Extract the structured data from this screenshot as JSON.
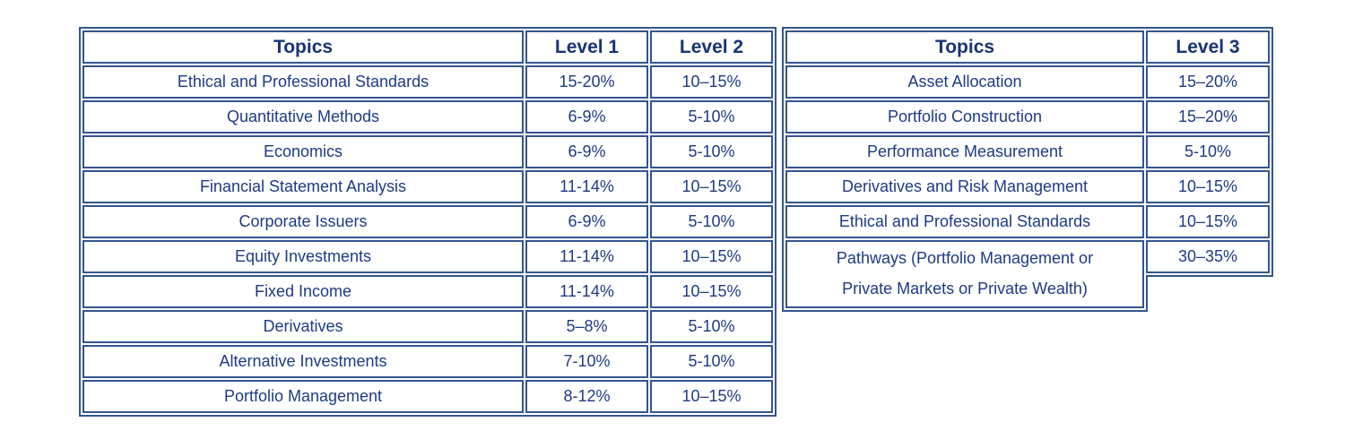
{
  "colors": {
    "text": "#1e3a85",
    "header_text": "#1a3375",
    "border": "#34558f",
    "background": "#ffffff"
  },
  "left_table": {
    "headers": [
      "Topics",
      "Level 1",
      "Level 2"
    ],
    "rows": [
      [
        "Ethical and Professional Standards",
        "15-20%",
        "10–15%"
      ],
      [
        "Quantitative Methods",
        "6-9%",
        "5-10%"
      ],
      [
        "Economics",
        "6-9%",
        "5-10%"
      ],
      [
        "Financial Statement Analysis",
        "11-14%",
        "10–15%"
      ],
      [
        "Corporate Issuers",
        "6-9%",
        "5-10%"
      ],
      [
        "Equity Investments",
        "11-14%",
        "10–15%"
      ],
      [
        "Fixed Income",
        "11-14%",
        "10–15%"
      ],
      [
        "Derivatives",
        "5–8%",
        "5-10%"
      ],
      [
        "Alternative Investments",
        "7-10%",
        "5-10%"
      ],
      [
        "Portfolio Management",
        "8-12%",
        "10–15%"
      ]
    ]
  },
  "right_table": {
    "headers": [
      "Topics",
      "Level 3"
    ],
    "rows": [
      [
        "Asset Allocation",
        "15–20%"
      ],
      [
        "Portfolio Construction",
        "15–20%"
      ],
      [
        "Performance Measurement",
        "5-10%"
      ],
      [
        "Derivatives and Risk Management",
        "10–15%"
      ],
      [
        "Ethical and Professional Standards",
        "10–15%"
      ]
    ],
    "tall_row": {
      "topic_line1": "Pathways (Portfolio Management or",
      "topic_line2": "Private Markets or Private Wealth)",
      "value": "30–35%"
    }
  }
}
